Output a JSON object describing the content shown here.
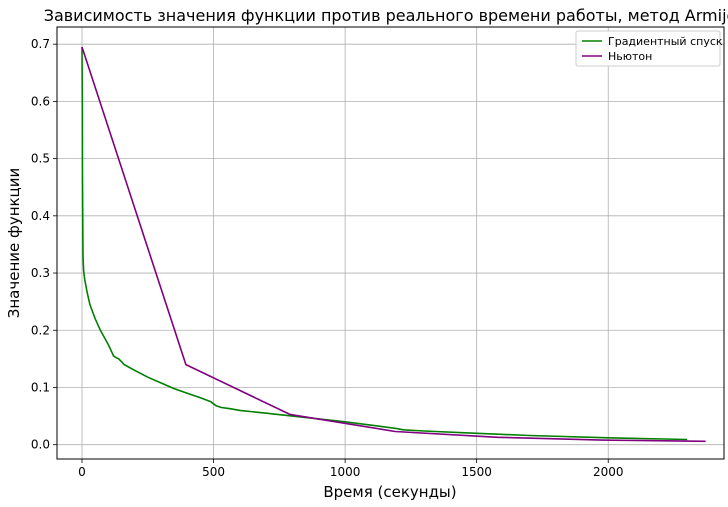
{
  "chart_data": {
    "type": "line",
    "title": "Зависимость значения функции против реального времени работы, метод Armijo",
    "xlabel": "Время (секунды)",
    "ylabel": "Значение функции",
    "xlim": [
      -95,
      2440
    ],
    "ylim": [
      -0.025,
      0.73
    ],
    "xticks": [
      0,
      500,
      1000,
      1500,
      2000
    ],
    "yticks": [
      0.0,
      0.1,
      0.2,
      0.3,
      0.4,
      0.5,
      0.6,
      0.7
    ],
    "grid": true,
    "legend_position": "top-right",
    "series": [
      {
        "name": "Градиентный спуск",
        "color": "#008000",
        "x": [
          0,
          1,
          2,
          3,
          4,
          6,
          10,
          20,
          30,
          50,
          70,
          100,
          120,
          130,
          140,
          150,
          160,
          200,
          250,
          300,
          350,
          400,
          450,
          490,
          510,
          530,
          560,
          600,
          700,
          800,
          900,
          1000,
          1100,
          1200,
          1220,
          1300,
          1500,
          1700,
          2000,
          2300
        ],
        "y": [
          0.695,
          0.6,
          0.46,
          0.38,
          0.33,
          0.305,
          0.29,
          0.265,
          0.245,
          0.22,
          0.2,
          0.175,
          0.155,
          0.152,
          0.15,
          0.145,
          0.14,
          0.13,
          0.118,
          0.108,
          0.098,
          0.09,
          0.082,
          0.075,
          0.068,
          0.065,
          0.063,
          0.06,
          0.055,
          0.05,
          0.045,
          0.04,
          0.034,
          0.028,
          0.026,
          0.024,
          0.02,
          0.016,
          0.012,
          0.009
        ]
      },
      {
        "name": "Ньютон",
        "color": "#800080",
        "x": [
          0,
          395,
          790,
          1190,
          1580,
          1975,
          2370
        ],
        "y": [
          0.695,
          0.14,
          0.053,
          0.023,
          0.013,
          0.008,
          0.006
        ]
      }
    ]
  }
}
